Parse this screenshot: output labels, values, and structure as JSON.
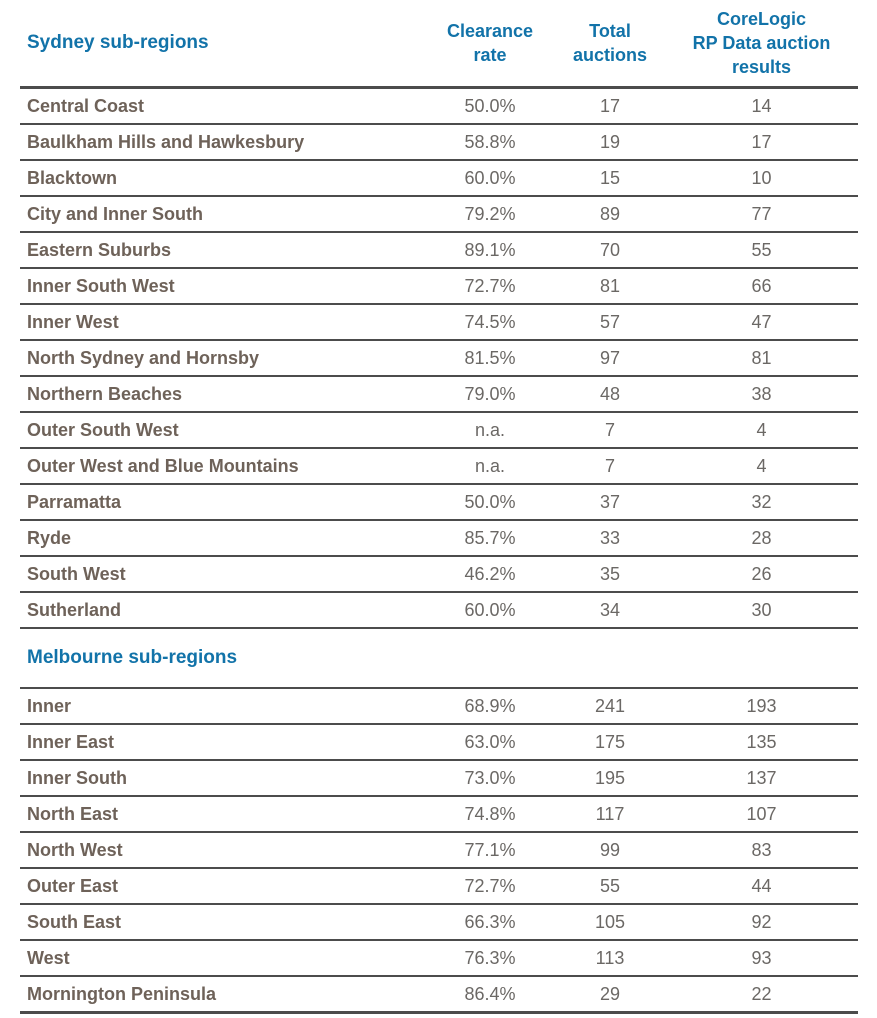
{
  "columns": [
    "Clearance\nrate",
    "Total\nauctions",
    "CoreLogic\nRP Data auction\nresults"
  ],
  "sections": [
    {
      "title": "Sydney sub-regions",
      "rows": [
        [
          "Central Coast",
          "50.0%",
          "17",
          "14"
        ],
        [
          "Baulkham Hills and Hawkesbury",
          "58.8%",
          "19",
          "17"
        ],
        [
          "Blacktown",
          "60.0%",
          "15",
          "10"
        ],
        [
          "City and Inner South",
          "79.2%",
          "89",
          "77"
        ],
        [
          "Eastern Suburbs",
          "89.1%",
          "70",
          "55"
        ],
        [
          "Inner South West",
          "72.7%",
          "81",
          "66"
        ],
        [
          "Inner West",
          "74.5%",
          "57",
          "47"
        ],
        [
          "North Sydney and Hornsby",
          "81.5%",
          "97",
          "81"
        ],
        [
          "Northern Beaches",
          "79.0%",
          "48",
          "38"
        ],
        [
          "Outer South West",
          "n.a.",
          "7",
          "4"
        ],
        [
          "Outer West and Blue Mountains",
          "n.a.",
          "7",
          "4"
        ],
        [
          "Parramatta",
          "50.0%",
          "37",
          "32"
        ],
        [
          "Ryde",
          "85.7%",
          "33",
          "28"
        ],
        [
          "South West",
          "46.2%",
          "35",
          "26"
        ],
        [
          "Sutherland",
          "60.0%",
          "34",
          "30"
        ]
      ]
    },
    {
      "title": "Melbourne sub-regions",
      "rows": [
        [
          "Inner",
          "68.9%",
          "241",
          "193"
        ],
        [
          "Inner East",
          "63.0%",
          "175",
          "135"
        ],
        [
          "Inner South",
          "73.0%",
          "195",
          "137"
        ],
        [
          "North East",
          "74.8%",
          "117",
          "107"
        ],
        [
          "North West",
          "77.1%",
          "99",
          "83"
        ],
        [
          "Outer East",
          "72.7%",
          "55",
          "44"
        ],
        [
          "South East",
          "66.3%",
          "105",
          "92"
        ],
        [
          "West",
          "76.3%",
          "113",
          "93"
        ],
        [
          "Mornington Peninsula",
          "86.4%",
          "29",
          "22"
        ]
      ]
    }
  ],
  "colors": {
    "heading_blue": "#1273a9",
    "label_brown": "#6e6259",
    "value_gray": "#6b6865",
    "rule_dark": "#4c4c4c"
  }
}
